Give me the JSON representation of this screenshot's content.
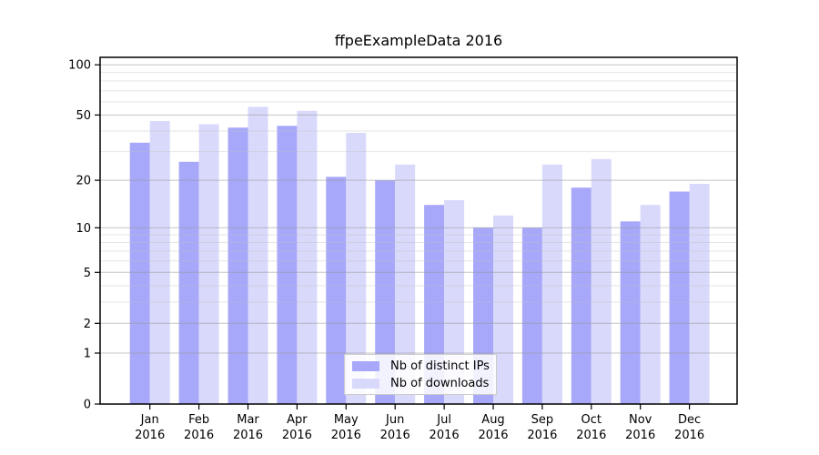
{
  "chart_data": {
    "type": "bar",
    "title": "ffpeExampleData 2016",
    "categories": [
      "Jan",
      "Feb",
      "Mar",
      "Apr",
      "May",
      "Jun",
      "Jul",
      "Aug",
      "Sep",
      "Oct",
      "Nov",
      "Dec"
    ],
    "x_tick_year_line": "2016",
    "series": [
      {
        "name": "Nb of distinct IPs",
        "color": "#a8a8fa",
        "values": [
          34,
          26,
          42,
          43,
          21,
          20,
          14,
          10,
          10,
          18,
          11,
          17
        ]
      },
      {
        "name": "Nb of downloads",
        "color": "#d9d9fb",
        "values": [
          46,
          44,
          56,
          53,
          39,
          25,
          15,
          12,
          25,
          27,
          14,
          19
        ]
      }
    ],
    "yscale": "log10(1+y)",
    "y_tick_values": [
      0,
      1,
      2,
      5,
      10,
      20,
      50,
      100
    ],
    "y_tick_labels": [
      "0",
      "1",
      "2",
      "5",
      "10",
      "20",
      "50",
      "100"
    ],
    "y_minor_gridlines": [
      3,
      4,
      6,
      7,
      8,
      9,
      30,
      40,
      60,
      70,
      80,
      90
    ],
    "ylim": [
      0,
      111
    ],
    "grid": "horizontal, major and minor, drawn over bars",
    "legend_position": "inside bottom-center",
    "colors": {
      "background": "#ffffff",
      "frame": "#000000",
      "text": "#000000",
      "major_grid": "#d0d0d0",
      "minor_grid": "#ececec"
    }
  }
}
